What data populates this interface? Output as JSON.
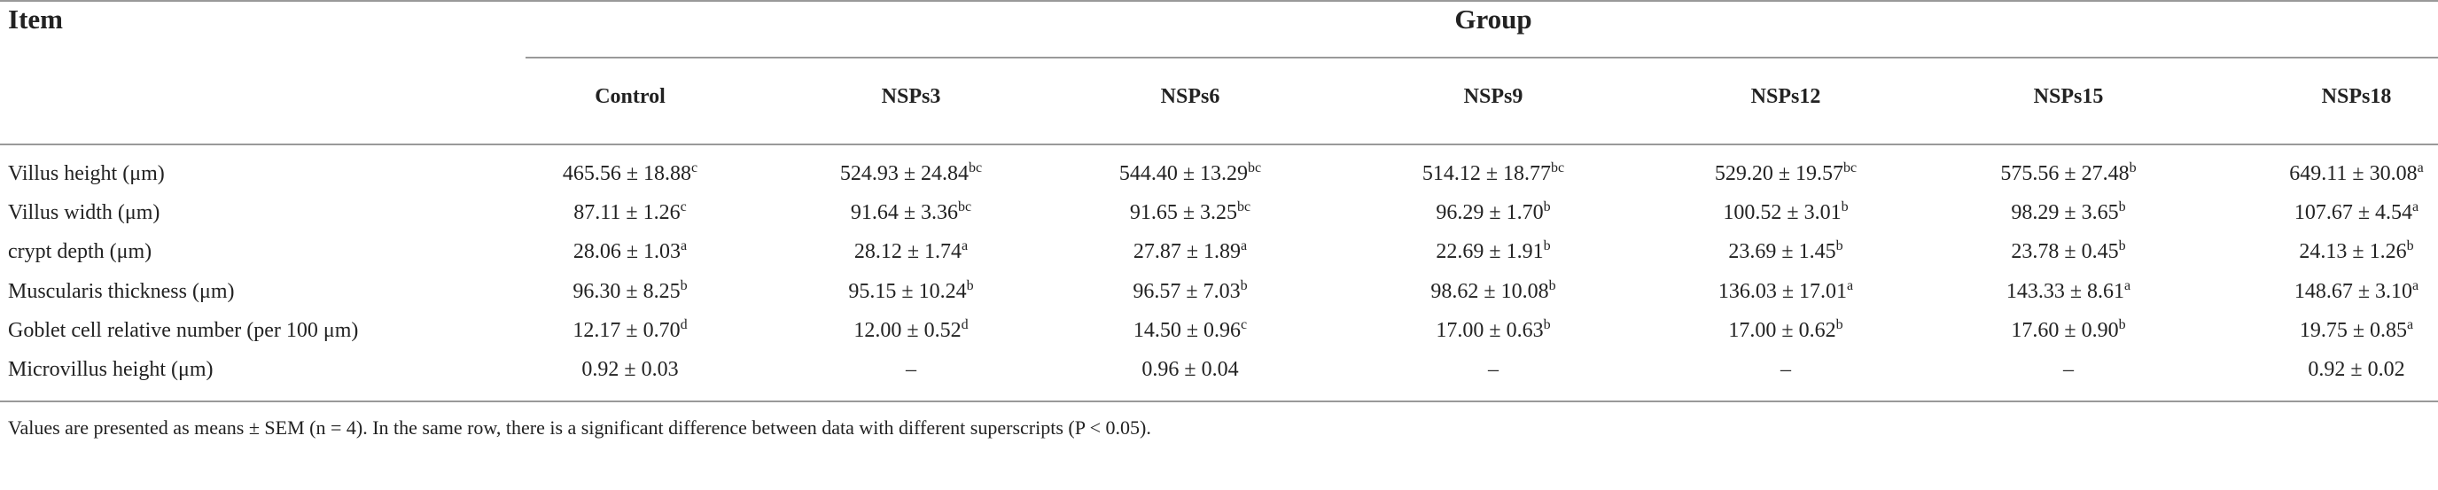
{
  "header": {
    "item": "Item",
    "group": "Group"
  },
  "table": {
    "columns": [
      "Control",
      "NSPs3",
      "NSPs6",
      "NSPs9",
      "NSPs12",
      "NSPs15",
      "NSPs18"
    ],
    "rows": [
      {
        "label": "Villus height (μm)",
        "cells": [
          {
            "value": "465.56 ± 18.88",
            "sup": "c"
          },
          {
            "value": "524.93 ± 24.84",
            "sup": "bc"
          },
          {
            "value": "544.40 ± 13.29",
            "sup": "bc"
          },
          {
            "value": "514.12 ± 18.77",
            "sup": "bc"
          },
          {
            "value": "529.20 ± 19.57",
            "sup": "bc"
          },
          {
            "value": "575.56 ± 27.48",
            "sup": "b"
          },
          {
            "value": "649.11 ± 30.08",
            "sup": "a"
          }
        ]
      },
      {
        "label": "Villus width (μm)",
        "cells": [
          {
            "value": "87.11 ± 1.26",
            "sup": "c"
          },
          {
            "value": "91.64 ± 3.36",
            "sup": "bc"
          },
          {
            "value": "91.65 ± 3.25",
            "sup": "bc"
          },
          {
            "value": "96.29 ± 1.70",
            "sup": "b"
          },
          {
            "value": "100.52 ± 3.01",
            "sup": "b"
          },
          {
            "value": "98.29 ± 3.65",
            "sup": "b"
          },
          {
            "value": "107.67 ± 4.54",
            "sup": "a"
          }
        ]
      },
      {
        "label": "crypt depth (μm)",
        "cells": [
          {
            "value": "28.06 ± 1.03",
            "sup": "a"
          },
          {
            "value": "28.12 ± 1.74",
            "sup": "a"
          },
          {
            "value": "27.87 ± 1.89",
            "sup": "a"
          },
          {
            "value": "22.69 ± 1.91",
            "sup": "b"
          },
          {
            "value": "23.69 ± 1.45",
            "sup": "b"
          },
          {
            "value": "23.78 ± 0.45",
            "sup": "b"
          },
          {
            "value": "24.13 ± 1.26",
            "sup": "b"
          }
        ]
      },
      {
        "label": "Muscularis thickness (μm)",
        "cells": [
          {
            "value": "96.30 ± 8.25",
            "sup": "b"
          },
          {
            "value": "95.15 ± 10.24",
            "sup": "b"
          },
          {
            "value": "96.57 ± 7.03",
            "sup": "b"
          },
          {
            "value": "98.62 ± 10.08",
            "sup": "b"
          },
          {
            "value": "136.03 ± 17.01",
            "sup": "a"
          },
          {
            "value": "143.33 ± 8.61",
            "sup": "a"
          },
          {
            "value": "148.67 ± 3.10",
            "sup": "a"
          }
        ]
      },
      {
        "label": "Goblet cell relative number (per 100 μm)",
        "cells": [
          {
            "value": "12.17 ± 0.70",
            "sup": "d"
          },
          {
            "value": "12.00 ± 0.52",
            "sup": "d"
          },
          {
            "value": "14.50 ± 0.96",
            "sup": "c"
          },
          {
            "value": "17.00 ± 0.63",
            "sup": "b"
          },
          {
            "value": "17.00 ± 0.62",
            "sup": "b"
          },
          {
            "value": "17.60 ± 0.90",
            "sup": "b"
          },
          {
            "value": "19.75 ± 0.85",
            "sup": "a"
          }
        ]
      },
      {
        "label": "Microvillus height (μm)",
        "cells": [
          {
            "value": "0.92 ± 0.03"
          },
          {
            "value": "–"
          },
          {
            "value": "0.96 ± 0.04"
          },
          {
            "value": "–"
          },
          {
            "value": "–"
          },
          {
            "value": "–"
          },
          {
            "value": "0.92 ± 0.02"
          }
        ]
      }
    ]
  },
  "footnote": "Values are presented as means ± SEM (n = 4). In the same row, there is a significant difference between data with different superscripts (P < 0.05)."
}
